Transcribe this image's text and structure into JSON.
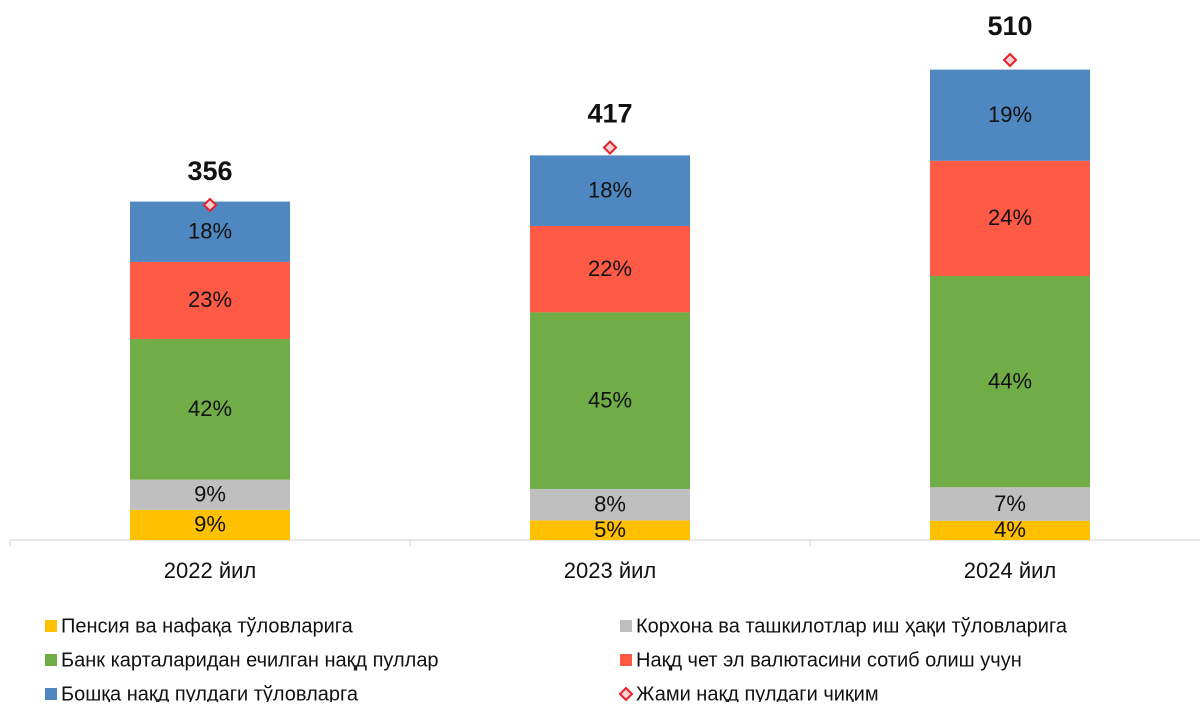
{
  "chart_data": {
    "type": "stacked-bar",
    "categories": [
      "2022 йил",
      "2023 йил",
      "2024 йил"
    ],
    "series": [
      {
        "name": "Пенсия ва нафақа тўловларига",
        "color": "#ffc000",
        "values": [
          9,
          5,
          4
        ],
        "value_labels": [
          "9%",
          "5%",
          "4%"
        ]
      },
      {
        "name": "Корхона ва ташкилотлар иш ҳақи тўловларига",
        "color": "#bfbfbf",
        "values": [
          9,
          8,
          7
        ],
        "value_labels": [
          "9%",
          "8%",
          "7%"
        ]
      },
      {
        "name": "Банк карталаридан ечилган нақд пуллар",
        "color": "#70ad47",
        "values": [
          42,
          45,
          44
        ],
        "value_labels": [
          "42%",
          "45%",
          "44%"
        ]
      },
      {
        "name": "Нақд чет эл валютасини сотиб олиш учун",
        "color": "#ff5a45",
        "values": [
          23,
          22,
          24
        ],
        "value_labels": [
          "23%",
          "22%",
          "24%"
        ]
      },
      {
        "name": "Бошқа нақд пулдаги тўловларга",
        "color": "#4f88c0",
        "values": [
          18,
          18,
          19
        ],
        "value_labels": [
          "18%",
          "18%",
          "19%"
        ]
      }
    ],
    "total": {
      "name": "Жами нақд пулдаги чиқим",
      "color": "#e8202a",
      "values": [
        356,
        417,
        510
      ]
    }
  }
}
